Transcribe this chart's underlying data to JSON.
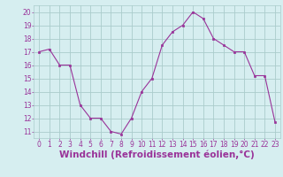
{
  "x": [
    0,
    1,
    2,
    3,
    4,
    5,
    6,
    7,
    8,
    9,
    10,
    11,
    12,
    13,
    14,
    15,
    16,
    17,
    18,
    19,
    20,
    21,
    22,
    23
  ],
  "y": [
    17.0,
    17.2,
    16.0,
    16.0,
    13.0,
    12.0,
    12.0,
    11.0,
    10.8,
    12.0,
    14.0,
    15.0,
    17.5,
    18.5,
    19.0,
    20.0,
    19.5,
    18.0,
    17.5,
    17.0,
    17.0,
    15.2,
    15.2,
    11.7
  ],
  "line_color": "#993399",
  "marker_color": "#993399",
  "bg_color": "#d6eef0",
  "grid_color": "#aacccc",
  "xlabel": "Windchill (Refroidissement éolien,°C)",
  "xlabel_color": "#993399",
  "xlim": [
    -0.5,
    23.5
  ],
  "ylim": [
    10.5,
    20.5
  ],
  "yticks": [
    11,
    12,
    13,
    14,
    15,
    16,
    17,
    18,
    19,
    20
  ],
  "xtick_labels": [
    "0",
    "1",
    "2",
    "3",
    "4",
    "5",
    "6",
    "7",
    "8",
    "9",
    "10",
    "11",
    "12",
    "13",
    "14",
    "15",
    "16",
    "17",
    "18",
    "19",
    "20",
    "21",
    "22",
    "23"
  ],
  "tick_color": "#993399",
  "tick_fontsize": 5.5,
  "xlabel_fontsize": 7.5
}
